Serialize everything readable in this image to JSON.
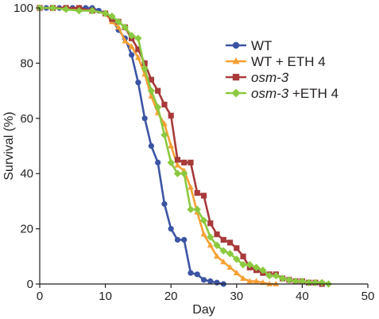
{
  "chart_data": {
    "type": "line",
    "xlabel": "Day",
    "ylabel": "Survival (%)",
    "xlim": [
      0,
      50
    ],
    "ylim": [
      0,
      100
    ],
    "xticks": [
      0,
      10,
      20,
      30,
      40,
      50
    ],
    "yticks": [
      0,
      20,
      40,
      60,
      80,
      100
    ],
    "grid": false,
    "legend_position": "top-right",
    "series": [
      {
        "name": "WT",
        "italic": false,
        "color": "#3b55a4",
        "marker": "circle",
        "x": [
          0,
          1,
          2,
          3,
          4,
          5,
          6,
          7,
          8,
          9,
          10,
          11,
          12,
          13,
          14,
          15,
          16,
          17,
          18,
          19,
          20,
          21,
          22,
          23,
          24,
          25,
          26,
          27,
          28
        ],
        "y": [
          100,
          100,
          100,
          100,
          100,
          100,
          100,
          100,
          100,
          99,
          98,
          96,
          92,
          89,
          83,
          73,
          60,
          50,
          44,
          29,
          20,
          16,
          16,
          4,
          3.5,
          1.5,
          1,
          0.5,
          0
        ]
      },
      {
        "name": "WT + ETH 4",
        "italic": false,
        "color": "#f5a033",
        "marker": "triangle",
        "x": [
          0,
          2,
          4,
          6,
          8,
          10,
          11,
          12,
          13,
          14,
          15,
          16,
          17,
          18,
          19,
          20,
          21,
          22,
          23,
          24,
          25,
          26,
          27,
          28,
          29,
          30,
          31,
          32,
          33,
          34,
          35,
          36
        ],
        "y": [
          100,
          100,
          100,
          99.5,
          99,
          98,
          95,
          93,
          88,
          86,
          82,
          76,
          68,
          62,
          58,
          50,
          43,
          41,
          35,
          26,
          18,
          14,
          10,
          8,
          6,
          4,
          2,
          1,
          1,
          0.5,
          0,
          0
        ]
      },
      {
        "name": "osm-3",
        "italic": true,
        "color": "#a83a3a",
        "marker": "square",
        "x": [
          0,
          2,
          4,
          6,
          8,
          10,
          11,
          12,
          13,
          14,
          15,
          16,
          17,
          18,
          19,
          20,
          21,
          22,
          23,
          24,
          25,
          26,
          27,
          28,
          29,
          30,
          31,
          32,
          33,
          34,
          35,
          36,
          37,
          38,
          39,
          40,
          41,
          42,
          43
        ],
        "y": [
          100,
          100,
          100,
          100,
          99,
          98,
          96,
          95,
          93,
          89,
          85,
          80,
          74,
          70,
          65,
          61,
          45,
          44,
          44,
          33,
          32,
          22,
          18,
          16,
          15,
          13,
          10,
          6,
          5,
          4,
          3.5,
          3.5,
          2,
          1.5,
          1,
          1,
          0.5,
          0.5,
          0
        ]
      },
      {
        "name": "osm-3 +ETH 4",
        "italic": true,
        "color": "#8bc93f",
        "marker": "diamond",
        "x": [
          0,
          2,
          4,
          6,
          8,
          10,
          11,
          12,
          13,
          14,
          15,
          16,
          17,
          18,
          19,
          20,
          21,
          22,
          23,
          24,
          25,
          26,
          27,
          28,
          29,
          30,
          31,
          32,
          33,
          34,
          35,
          36,
          37,
          38,
          39,
          40,
          41,
          42,
          43,
          44
        ],
        "y": [
          100,
          100,
          99.5,
          99,
          99,
          98,
          97,
          95,
          93,
          90,
          89,
          78,
          70,
          64,
          54,
          44,
          40,
          40,
          27,
          27,
          23,
          17,
          14,
          12,
          11,
          9,
          7,
          7,
          6,
          5,
          3,
          3,
          2,
          1.5,
          1,
          1,
          0.5,
          0.5,
          0.5,
          0
        ]
      }
    ],
    "legend_entries": [
      {
        "prefix": "WT",
        "suffix": ""
      },
      {
        "prefix": "WT",
        "suffix": " + ETH 4"
      },
      {
        "prefix": "osm-3",
        "suffix": ""
      },
      {
        "prefix": "osm-3",
        "suffix": " +ETH 4"
      }
    ]
  }
}
